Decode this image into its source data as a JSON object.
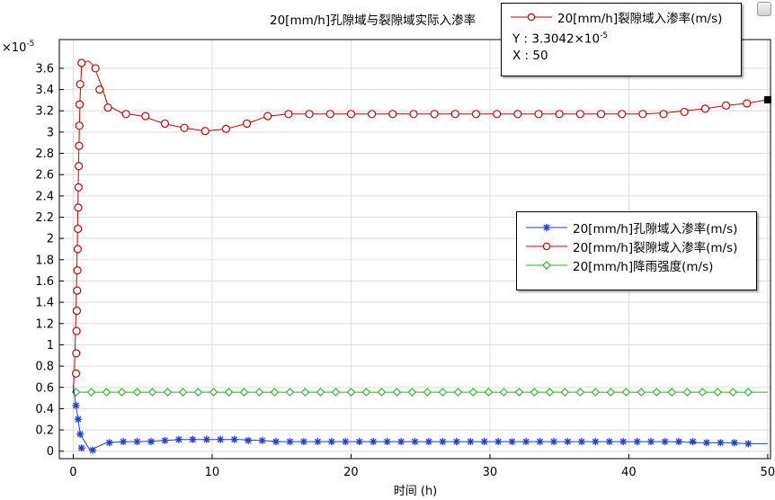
{
  "chart_data": {
    "type": "line",
    "title": "20[mm/h]孔隙域与裂隙域实际入渗率",
    "xlabel": "时间 (h)",
    "ylabel": "",
    "y_scale_label": "×10",
    "y_scale_exponent": "-5",
    "xlim": [
      -1,
      50.2
    ],
    "ylim": [
      -0.07,
      3.87
    ],
    "xticks": [
      "0",
      "10",
      "20",
      "30",
      "40",
      "50"
    ],
    "yticks": [
      "0",
      "0.2",
      "0.4",
      "0.6",
      "0.8",
      "1",
      "1.2",
      "1.4",
      "1.6",
      "1.8",
      "2",
      "2.2",
      "2.4",
      "2.6",
      "2.8",
      "3",
      "3.2",
      "3.4",
      "3.6"
    ],
    "grid": true,
    "legend_position": "right-middle",
    "series": [
      {
        "name": "20[mm/h]孔隙域入渗率(m/s)",
        "color": "#1f3fd6",
        "marker": "star",
        "x": [
          0,
          0.2,
          0.35,
          0.5,
          1.2,
          2.4,
          3.6,
          4.8,
          6.5,
          7.8,
          9,
          10.5,
          12,
          13.5,
          15,
          17,
          19,
          21,
          23,
          25,
          27,
          29,
          31,
          33,
          35,
          37,
          39,
          41,
          43,
          45,
          47,
          48.5,
          50
        ],
        "y": [
          0.62,
          0.43,
          0.3,
          0.16,
          0.01,
          0.08,
          0.09,
          0.09,
          0.1,
          0.11,
          0.11,
          0.11,
          0.11,
          0.1,
          0.09,
          0.09,
          0.09,
          0.09,
          0.09,
          0.09,
          0.09,
          0.09,
          0.09,
          0.09,
          0.09,
          0.09,
          0.09,
          0.09,
          0.09,
          0.08,
          0.08,
          0.07,
          0.07
        ],
        "markers_x": [
          0.2,
          0.35,
          0.5,
          0.6,
          1.4,
          2.6,
          3.6,
          4.6,
          5.6,
          6.6,
          7.6,
          8.6,
          9.6,
          10.6,
          11.6,
          12.6,
          13.6,
          14.6,
          15.6,
          16.6,
          17.6,
          18.6,
          19.6,
          20.6,
          21.6,
          22.6,
          23.6,
          24.6,
          25.6,
          26.6,
          27.6,
          28.6,
          29.6,
          30.6,
          31.6,
          32.6,
          33.6,
          34.6,
          35.6,
          36.6,
          37.6,
          38.6,
          39.6,
          40.6,
          41.6,
          42.6,
          43.6,
          44.6,
          45.6,
          46.6,
          47.6,
          48.6
        ],
        "markers_y": [
          0.43,
          0.3,
          0.16,
          0.03,
          0.01,
          0.08,
          0.09,
          0.09,
          0.09,
          0.1,
          0.11,
          0.11,
          0.11,
          0.11,
          0.11,
          0.1,
          0.1,
          0.09,
          0.09,
          0.09,
          0.09,
          0.09,
          0.09,
          0.09,
          0.09,
          0.09,
          0.09,
          0.09,
          0.09,
          0.09,
          0.09,
          0.09,
          0.09,
          0.09,
          0.09,
          0.09,
          0.09,
          0.09,
          0.09,
          0.09,
          0.09,
          0.09,
          0.09,
          0.09,
          0.09,
          0.09,
          0.09,
          0.09,
          0.08,
          0.08,
          0.08,
          0.07
        ]
      },
      {
        "name": "20[mm/h]裂隙域入渗率(m/s)",
        "color": "#cc0000",
        "marker": "circle",
        "x": [
          0,
          0.1,
          0.2,
          0.3,
          0.4,
          0.5,
          0.6,
          0.8,
          1.1,
          1.5,
          2.0,
          2.5,
          3.5,
          5.0,
          6.5,
          8.0,
          9.5,
          11,
          12.5,
          14,
          15.5,
          17,
          19,
          21,
          23,
          25,
          27,
          29,
          31,
          33,
          35,
          37,
          39,
          41,
          42.5,
          44,
          45.5,
          47,
          48.5,
          50
        ],
        "y": [
          0.55,
          0.8,
          1.3,
          2.0,
          2.8,
          3.35,
          3.62,
          3.66,
          3.67,
          3.62,
          3.45,
          3.25,
          3.18,
          3.15,
          3.08,
          3.04,
          3.01,
          3.03,
          3.08,
          3.15,
          3.17,
          3.17,
          3.17,
          3.17,
          3.17,
          3.17,
          3.17,
          3.17,
          3.17,
          3.17,
          3.17,
          3.17,
          3.17,
          3.17,
          3.18,
          3.2,
          3.22,
          3.25,
          3.27,
          3.3042
        ],
        "markers_x": [
          0.2,
          0.22,
          0.24,
          0.26,
          0.28,
          0.3,
          0.32,
          0.34,
          0.36,
          0.38,
          0.4,
          0.42,
          0.44,
          0.46,
          0.5,
          0.6,
          1.6,
          1.9,
          2.5,
          3.8,
          5.2,
          6.6,
          8.0,
          9.5,
          11,
          12.5,
          14,
          15.5,
          17,
          18.5,
          20,
          21.5,
          23,
          24.5,
          26,
          27.5,
          29,
          30.5,
          32,
          33.5,
          35,
          36.5,
          38,
          39.5,
          41,
          42.5,
          44,
          45.5,
          47,
          48.5
        ],
        "markers_y": [
          0.73,
          0.92,
          1.13,
          1.32,
          1.51,
          1.7,
          1.9,
          2.09,
          2.29,
          2.48,
          2.68,
          2.87,
          3.06,
          3.26,
          3.45,
          3.65,
          3.6,
          3.4,
          3.23,
          3.17,
          3.15,
          3.08,
          3.04,
          3.01,
          3.03,
          3.08,
          3.15,
          3.17,
          3.17,
          3.17,
          3.17,
          3.17,
          3.17,
          3.17,
          3.17,
          3.17,
          3.17,
          3.17,
          3.17,
          3.17,
          3.17,
          3.17,
          3.17,
          3.17,
          3.17,
          3.17,
          3.19,
          3.22,
          3.25,
          3.27
        ]
      },
      {
        "name": "20[mm/h]降雨强度(m/s)",
        "color": "#22b422",
        "marker": "diamond",
        "x": [
          0,
          50
        ],
        "y": [
          0.555,
          0.555
        ],
        "markers_x": [
          0.2,
          1.3,
          2.4,
          3.5,
          4.6,
          5.7,
          6.8,
          7.9,
          9.0,
          10.1,
          11.2,
          12.3,
          13.4,
          14.5,
          15.6,
          16.7,
          17.8,
          18.9,
          20.0,
          21.1,
          22.2,
          23.3,
          24.4,
          25.5,
          26.6,
          27.7,
          28.8,
          29.9,
          31.0,
          32.1,
          33.2,
          34.3,
          35.4,
          36.5,
          37.6,
          38.7,
          39.8,
          40.9,
          42.0,
          43.1,
          44.2,
          45.3,
          46.4,
          47.5,
          48.6
        ],
        "markers_y": [
          0.555,
          0.555,
          0.555,
          0.555,
          0.555,
          0.555,
          0.555,
          0.555,
          0.555,
          0.555,
          0.555,
          0.555,
          0.555,
          0.555,
          0.555,
          0.555,
          0.555,
          0.555,
          0.555,
          0.555,
          0.555,
          0.555,
          0.555,
          0.555,
          0.555,
          0.555,
          0.555,
          0.555,
          0.555,
          0.555,
          0.555,
          0.555,
          0.555,
          0.555,
          0.555,
          0.555,
          0.555,
          0.555,
          0.555,
          0.555,
          0.555,
          0.555,
          0.555,
          0.555,
          0.555
        ]
      }
    ],
    "highlight_point": {
      "series": "20[mm/h]裂隙域入渗率(m/s)",
      "x": 50,
      "y": 3.3042,
      "label_y": "Y : 3.3042×10",
      "label_y_exp": "-5",
      "label_x": "X : 50"
    }
  }
}
